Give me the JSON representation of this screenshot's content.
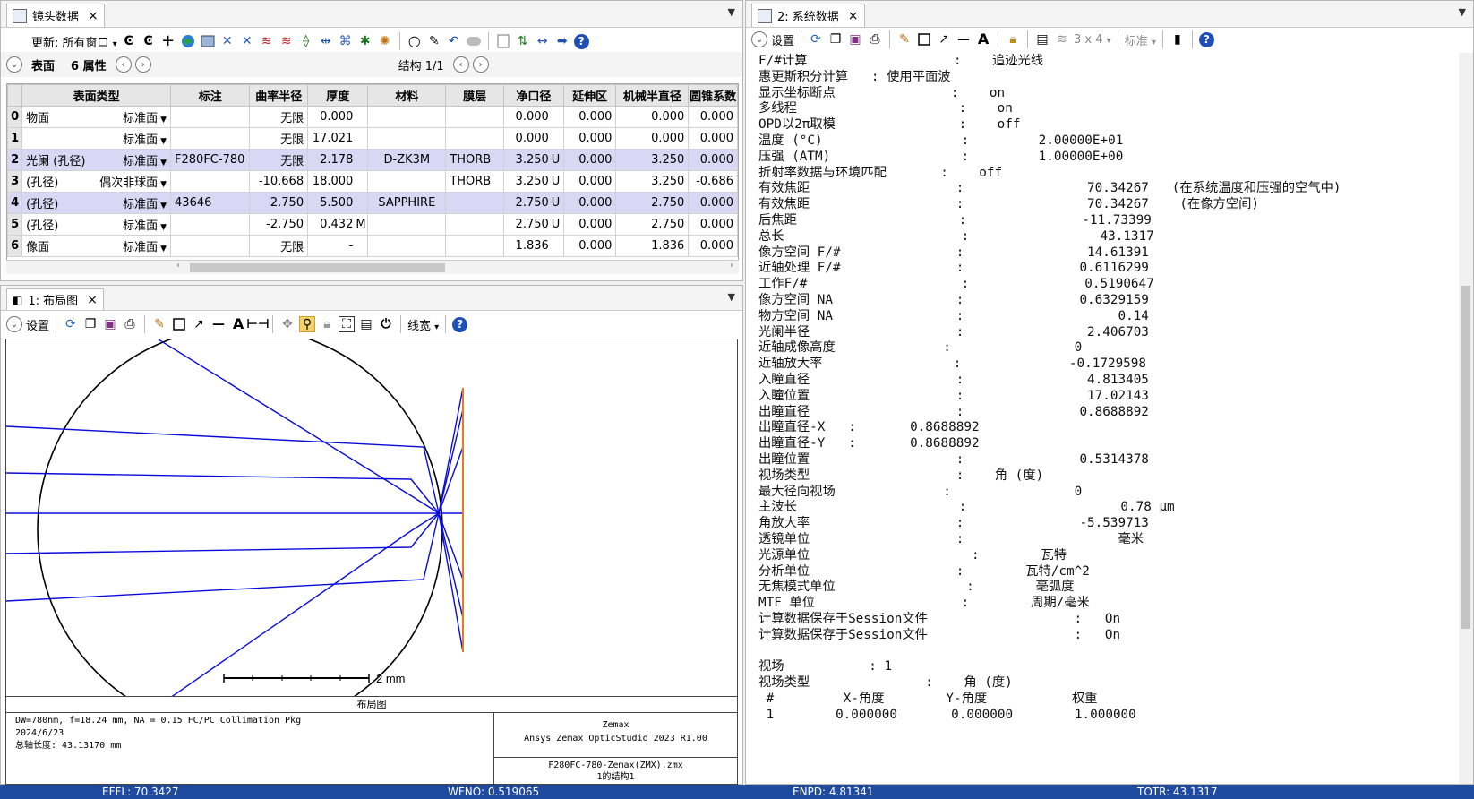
{
  "lens_tab": {
    "title": "镜头数据",
    "close": "×",
    "menu": "▼"
  },
  "lens_toolbar": {
    "update_label": "更新: 所有窗口",
    "update_caret": "▾"
  },
  "surface_bar": {
    "label": "表面",
    "props": "6 属性",
    "config": "结构 1/1"
  },
  "lens_columns": [
    "表面类型",
    "标注",
    "曲率半径",
    "厚度",
    "材料",
    "膜层",
    "净口径",
    "延伸区",
    "机械半直径",
    "圆锥系数"
  ],
  "lens_rows": [
    {
      "n": "0",
      "name": "物面",
      "type": "标准面",
      "comment": "",
      "radius": "无限",
      "thick": "0.000",
      "thick_f": "",
      "mat": "",
      "coat": "",
      "clear": "0.000",
      "clear_f": "",
      "chip": "0.000",
      "mech": "0.000",
      "conic": "0.000",
      "hl": false
    },
    {
      "n": "1",
      "name": "",
      "type": "标准面",
      "comment": "",
      "radius": "无限",
      "thick": "17.021",
      "thick_f": "",
      "mat": "",
      "coat": "",
      "clear": "0.000",
      "clear_f": "",
      "chip": "0.000",
      "mech": "0.000",
      "conic": "0.000",
      "hl": false
    },
    {
      "n": "2",
      "name": "光阑 (孔径)",
      "type": "标准面",
      "comment": "F280FC-780",
      "radius": "无限",
      "thick": "2.178",
      "thick_f": "",
      "mat": "D-ZK3M",
      "coat": "THORB",
      "clear": "3.250",
      "clear_f": "U",
      "chip": "0.000",
      "mech": "3.250",
      "conic": "0.000",
      "hl": true
    },
    {
      "n": "3",
      "name": "(孔径)",
      "type": "偶次非球面",
      "comment": "",
      "radius": "-10.668",
      "thick": "18.000",
      "thick_f": "",
      "mat": "",
      "coat": "THORB",
      "clear": "3.250",
      "clear_f": "U",
      "chip": "0.000",
      "mech": "3.250",
      "conic": "-0.686",
      "hl": false
    },
    {
      "n": "4",
      "name": "(孔径)",
      "type": "标准面",
      "comment": "43646",
      "radius": "2.750",
      "thick": "5.500",
      "thick_f": "",
      "mat": "SAPPHIRE",
      "coat": "",
      "clear": "2.750",
      "clear_f": "U",
      "chip": "0.000",
      "mech": "2.750",
      "conic": "0.000",
      "hl": true
    },
    {
      "n": "5",
      "name": "(孔径)",
      "type": "标准面",
      "comment": "",
      "radius": "-2.750",
      "thick": "0.432",
      "thick_f": "M",
      "mat": "",
      "coat": "",
      "clear": "2.750",
      "clear_f": "U",
      "chip": "0.000",
      "mech": "2.750",
      "conic": "0.000",
      "hl": false
    },
    {
      "n": "6",
      "name": "像面",
      "type": "标准面",
      "comment": "",
      "radius": "无限",
      "thick": "-",
      "thick_f": "",
      "mat": "",
      "coat": "",
      "clear": "1.836",
      "clear_f": "",
      "chip": "0.000",
      "mech": "1.836",
      "conic": "0.000",
      "hl": false
    }
  ],
  "layout_tab": {
    "title": "1: 布局图",
    "close": "×"
  },
  "layout_toolbar": {
    "settings": "设置",
    "linewidth": "线宽"
  },
  "layout": {
    "scale_label": "2 mm",
    "caption": "布局图"
  },
  "info": {
    "line1": "DW=780nm, f=18.24 mm, NA = 0.15 FC/PC Collimation Pkg",
    "line2": "2024/6/23",
    "line3": "总轴长度:    43.13170 mm",
    "brand": "Zemax",
    "product": "Ansys Zemax OpticStudio 2023 R1.00",
    "file": "F280FC-780-Zemax(ZMX).zmx",
    "config": "1的结构1"
  },
  "sys_tab": {
    "title": "2: 系统数据",
    "close": "×"
  },
  "sys_toolbar": {
    "settings": "设置",
    "grid": "3 x 4",
    "standard": "标准"
  },
  "sys_lines": [
    "F/#计算                   :    追迹光线",
    "惠更斯积分计算   : 使用平面波",
    "显示坐标断点               :    on",
    "多线程                     :    on",
    "OPD以2π取模                :    off",
    "温度 (°C)                  :         2.00000E+01",
    "压强 (ATM)                 :         1.00000E+00",
    "折射率数据与环境匹配       :    off",
    "有效焦距                   :                70.34267   (在系统温度和压强的空气中)",
    "有效焦距                   :                70.34267    (在像方空间)",
    "后焦距                     :               -11.73399",
    "总长                       :                 43.1317",
    "像方空间 F/#               :                14.61391",
    "近轴处理 F/#               :               0.6116299",
    "工作F/#                    :               0.5190647",
    "像方空间 NA                :               0.6329159",
    "物方空间 NA                :                    0.14",
    "光阑半径                   :                2.406703",
    "近轴成像高度              :                0",
    "近轴放大率                 :              -0.1729598",
    "入瞳直径                   :                4.813405",
    "入瞳位置                   :                17.02143",
    "出瞳直径                   :               0.8688892",
    "出瞳直径-X   :       0.8688892",
    "出瞳直径-Y   :       0.8688892",
    "出瞳位置                   :               0.5314378",
    "视场类型                   :    角 (度)",
    "最大径向视场              :                0",
    "主波长                     :                    0.78 µm",
    "角放大率                   :               -5.539713",
    "透镜单位                   :                    毫米",
    "光源单位                     :        瓦特",
    "分析单位                   :        瓦特/cm^2",
    "无焦模式单位                 :        毫弧度",
    "MTF 单位                   :        周期/毫米",
    "计算数据保存于Session文件                   :   On",
    "计算数据保存于Session文件                   :   On",
    "",
    "视场           : 1",
    "视场类型               :    角 (度)",
    " #         X-角度        Y-角度           权重",
    " 1        0.000000       0.000000        1.000000"
  ],
  "status": {
    "effl": "EFFL: 70.3427",
    "wfno": "WFNO: 0.519065",
    "enpd": "ENPD: 4.81341",
    "totr": "TOTR: 43.1317"
  },
  "colors": {
    "ray": "#0a0adc",
    "image_surface": "#e87a1e",
    "highlight_row": "#d8d8f4",
    "status_bar": "#1e4aa0"
  }
}
